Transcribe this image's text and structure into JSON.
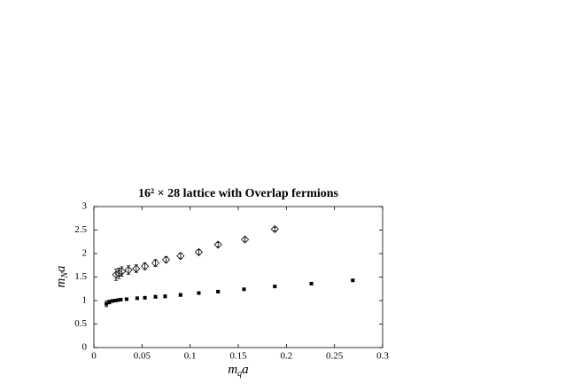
{
  "chart_data": {
    "type": "scatter",
    "title": "16² × 28 lattice with Overlap fermions",
    "x_label": [
      "m",
      "q",
      "a"
    ],
    "y_label": [
      "m",
      "N",
      "a"
    ],
    "xlim": [
      0,
      0.3
    ],
    "ylim": [
      0,
      3
    ],
    "xticks": [
      0,
      0.05,
      0.1,
      0.15,
      0.2,
      0.25,
      0.3
    ],
    "yticks": [
      0,
      0.5,
      1,
      1.5,
      2,
      2.5,
      3
    ],
    "series": [
      {
        "marker": "square",
        "color": "#000000",
        "x": [
          0.013,
          0.016,
          0.019,
          0.022,
          0.025,
          0.028,
          0.034,
          0.045,
          0.053,
          0.064,
          0.074,
          0.09,
          0.109,
          0.129,
          0.156,
          0.188,
          0.226,
          0.269
        ],
        "values": [
          0.93,
          0.97,
          0.99,
          1.0,
          1.01,
          1.02,
          1.03,
          1.05,
          1.06,
          1.08,
          1.09,
          1.12,
          1.16,
          1.19,
          1.24,
          1.3,
          1.36,
          1.43
        ],
        "errors": [
          0.06,
          0.04,
          0.03,
          0.03,
          0.02,
          0.02,
          0.02,
          0.02,
          0.02,
          0.03,
          0.03,
          0.03,
          0.02,
          0.02,
          0.02,
          0.02,
          0.02,
          0.02
        ]
      },
      {
        "marker": "diamond",
        "color": "#000000",
        "x": [
          0.023,
          0.026,
          0.029,
          0.036,
          0.044,
          0.053,
          0.064,
          0.075,
          0.09,
          0.109,
          0.129,
          0.157,
          0.188
        ],
        "values": [
          1.55,
          1.58,
          1.62,
          1.65,
          1.68,
          1.73,
          1.8,
          1.87,
          1.95,
          2.03,
          2.19,
          2.3,
          2.52
        ],
        "errors": [
          0.12,
          0.11,
          0.1,
          0.09,
          0.08,
          0.07,
          0.07,
          0.06,
          0.06,
          0.05,
          0.05,
          0.04,
          0.04
        ]
      }
    ]
  }
}
